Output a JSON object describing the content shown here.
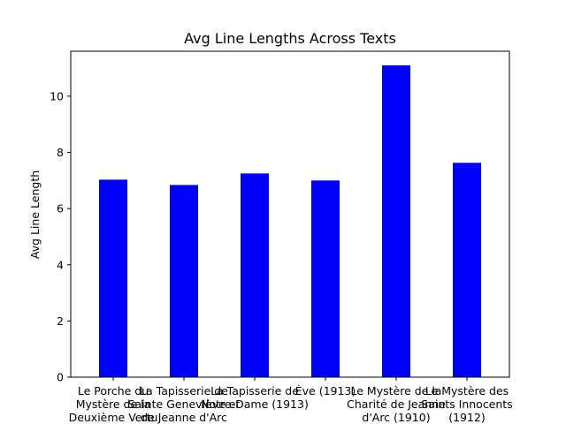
{
  "chart_data": {
    "type": "bar",
    "title": "Avg Line Lengths Across Texts",
    "xlabel": "",
    "ylabel": "Avg Line Length",
    "categories": [
      "Le Porche du Mystère de la Deuxième Vertu",
      "La Tapisserie de Sainte Geneviève et de Jeanne d'Arc",
      "La Tapisserie de Notre-Dame (1913)",
      "Ève (1913)",
      "Le Mystère de la Charité de Jeanne d'Arc (1910)",
      "Le Mystère des Saints Innocents (1912)"
    ],
    "category_lines": [
      [
        "Le Porche du",
        "Mystère de la",
        "Deuxième Vertu"
      ],
      [
        "La Tapisserie de",
        "Sainte Geneviève et",
        "de Jeanne d'Arc"
      ],
      [
        "La Tapisserie de",
        "Notre-Dame (1913)"
      ],
      [
        "Ève (1913)"
      ],
      [
        "Le Mystère de la",
        "Charité de Jeanne",
        "d'Arc (1910)"
      ],
      [
        "Le Mystère des",
        "Saints Innocents",
        "(1912)"
      ]
    ],
    "values": [
      7.03,
      6.84,
      7.25,
      7.0,
      11.1,
      7.63
    ],
    "ylim": [
      0,
      11.6
    ],
    "yticks": [
      0,
      2,
      4,
      6,
      8,
      10
    ],
    "bar_color": "#0000ff",
    "grid": false
  }
}
